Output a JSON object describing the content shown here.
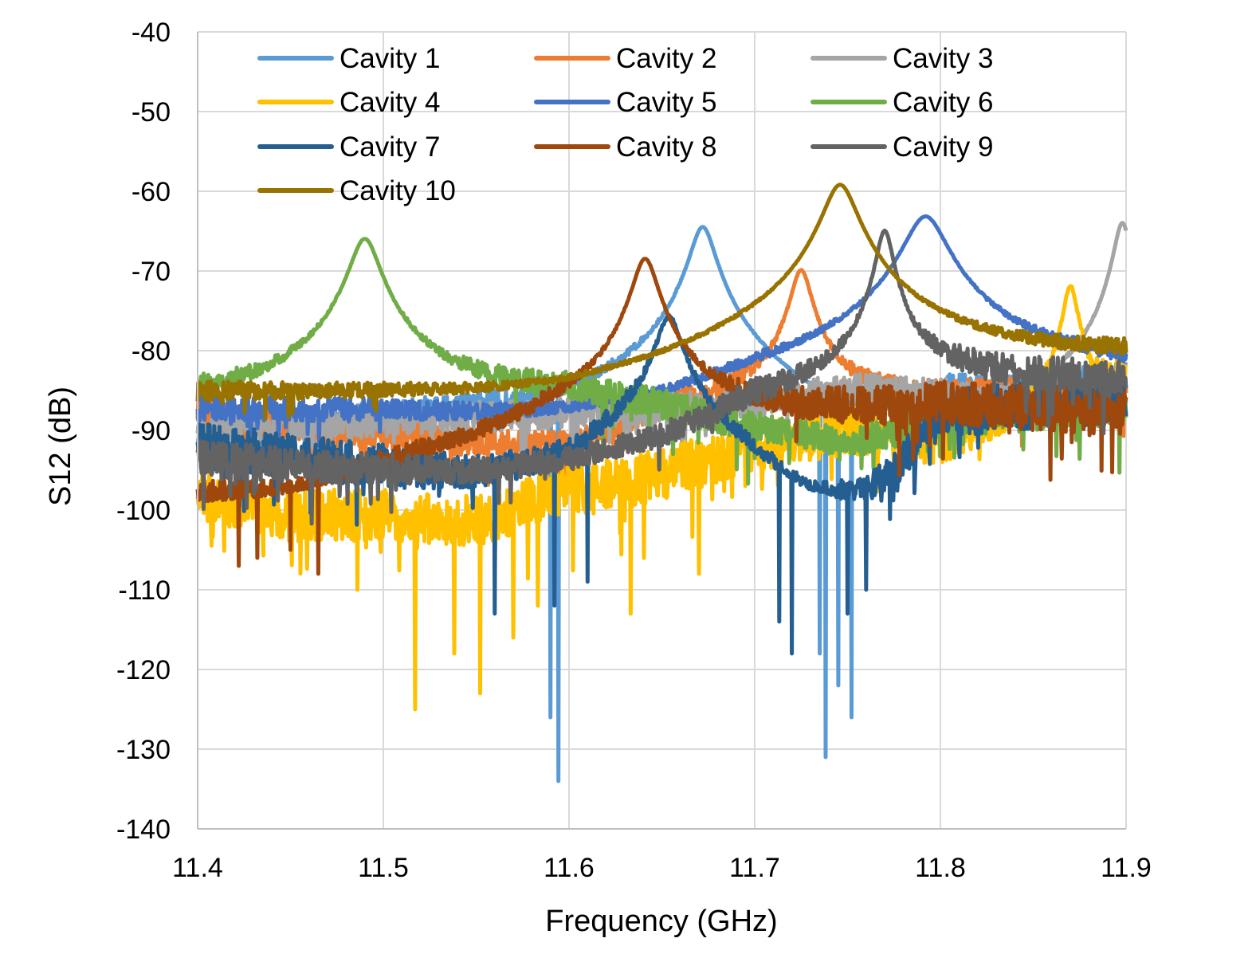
{
  "chart_data": {
    "type": "line",
    "title": "",
    "xlabel": "Frequency (GHz)",
    "ylabel": "S12 (dB)",
    "xlim": [
      11.4,
      11.9
    ],
    "ylim": [
      -140,
      -40
    ],
    "x_ticks": [
      "11.4",
      "11.5",
      "11.6",
      "11.7",
      "11.8",
      "11.9"
    ],
    "y_ticks": [
      "-40",
      "-50",
      "-60",
      "-70",
      "-80",
      "-90",
      "-100",
      "-110",
      "-120",
      "-130",
      "-140"
    ],
    "grid": true,
    "legend_position": "top",
    "series": [
      {
        "name": "Cavity 1",
        "color": "#5B9BD5",
        "resonance": {
          "freq": 11.672,
          "peak": -64.5,
          "width": 0.012,
          "rolloff": -2.2
        },
        "noise_floor": [
          [
            11.4,
            -91
          ],
          [
            11.55,
            -89
          ],
          [
            11.6,
            -90
          ],
          [
            11.63,
            -88
          ],
          [
            11.66,
            -86
          ],
          [
            11.7,
            -92
          ],
          [
            11.73,
            -100
          ],
          [
            11.76,
            -93
          ],
          [
            11.8,
            -86
          ],
          [
            11.9,
            -84
          ]
        ],
        "noise_amplitude": 2.5,
        "dips": [
          [
            11.59,
            -126
          ],
          [
            11.594,
            -134
          ],
          [
            11.738,
            -131
          ],
          [
            11.745,
            -122
          ],
          [
            11.752,
            -126
          ],
          [
            11.735,
            -118
          ]
        ]
      },
      {
        "name": "Cavity 2",
        "color": "#ED7D31",
        "resonance": {
          "freq": 11.725,
          "peak": -70,
          "width": 0.01,
          "rolloff": -2.5
        },
        "noise_floor": [
          [
            11.4,
            -88
          ],
          [
            11.55,
            -92
          ],
          [
            11.6,
            -93
          ],
          [
            11.65,
            -88
          ],
          [
            11.7,
            -86
          ],
          [
            11.8,
            -86
          ],
          [
            11.9,
            -85
          ]
        ],
        "noise_amplitude": 2,
        "dips": []
      },
      {
        "name": "Cavity 3",
        "color": "#A5A5A5",
        "resonance": {
          "freq": 11.898,
          "peak": -64,
          "width": 0.008,
          "rolloff": -2
        },
        "noise_floor": [
          [
            11.4,
            -90
          ],
          [
            11.5,
            -89
          ],
          [
            11.6,
            -88
          ],
          [
            11.7,
            -87
          ],
          [
            11.75,
            -85
          ],
          [
            11.8,
            -86
          ],
          [
            11.85,
            -90
          ],
          [
            11.9,
            -86
          ]
        ],
        "noise_amplitude": 2,
        "dips": []
      },
      {
        "name": "Cavity 4",
        "color": "#FFC000",
        "resonance": {
          "freq": 11.87,
          "peak": -72,
          "width": 0.007,
          "rolloff": -2.5
        },
        "noise_floor": [
          [
            11.4,
            -98
          ],
          [
            11.45,
            -101
          ],
          [
            11.5,
            -101
          ],
          [
            11.55,
            -102
          ],
          [
            11.6,
            -98
          ],
          [
            11.65,
            -96
          ],
          [
            11.7,
            -92
          ],
          [
            11.75,
            -90
          ],
          [
            11.8,
            -93
          ],
          [
            11.85,
            -90
          ],
          [
            11.9,
            -85
          ]
        ],
        "noise_amplitude": 3.5,
        "dips": [
          [
            11.517,
            -125
          ],
          [
            11.552,
            -123
          ],
          [
            11.538,
            -118
          ],
          [
            11.57,
            -116
          ],
          [
            11.633,
            -113
          ],
          [
            11.486,
            -110
          ],
          [
            11.583,
            -112
          ],
          [
            11.67,
            -108
          ]
        ]
      },
      {
        "name": "Cavity 5",
        "color": "#4472C4",
        "resonance": {
          "freq": 11.792,
          "peak": -63.2,
          "width": 0.02,
          "rolloff": -4.5
        },
        "noise_floor": [
          [
            11.4,
            -88
          ],
          [
            11.5,
            -89
          ],
          [
            11.6,
            -92
          ],
          [
            11.65,
            -91
          ],
          [
            11.7,
            -86
          ],
          [
            11.75,
            -84
          ],
          [
            11.9,
            -83
          ]
        ],
        "noise_amplitude": 2,
        "dips": []
      },
      {
        "name": "Cavity 6",
        "color": "#70AD47",
        "resonance": {
          "freq": 11.49,
          "peak": -66,
          "width": 0.014,
          "rolloff": -5
        },
        "noise_floor": [
          [
            11.4,
            -87
          ],
          [
            11.6,
            -86
          ],
          [
            11.65,
            -88
          ],
          [
            11.7,
            -91
          ],
          [
            11.75,
            -93
          ],
          [
            11.8,
            -89
          ],
          [
            11.9,
            -87
          ]
        ],
        "noise_amplitude": 2.5,
        "dips": []
      },
      {
        "name": "Cavity 7",
        "color": "#255E91",
        "resonance": {
          "freq": 11.654,
          "peak": -76,
          "width": 0.012,
          "rolloff": -1.5
        },
        "noise_floor": [
          [
            11.4,
            -92
          ],
          [
            11.5,
            -95
          ],
          [
            11.55,
            -97
          ],
          [
            11.6,
            -96
          ],
          [
            11.65,
            -88
          ],
          [
            11.7,
            -97
          ],
          [
            11.73,
            -104
          ],
          [
            11.76,
            -100
          ],
          [
            11.8,
            -88
          ],
          [
            11.9,
            -86
          ]
        ],
        "noise_amplitude": 3,
        "dips": [
          [
            11.72,
            -118
          ],
          [
            11.713,
            -114
          ],
          [
            11.75,
            -113
          ],
          [
            11.76,
            -110
          ],
          [
            11.56,
            -113
          ],
          [
            11.592,
            -112
          ],
          [
            11.61,
            -109
          ]
        ]
      },
      {
        "name": "Cavity 8",
        "color": "#9E480E",
        "resonance": {
          "freq": 11.641,
          "peak": -68.5,
          "width": 0.012,
          "rolloff": -2.5
        },
        "noise_floor": [
          [
            11.4,
            -101
          ],
          [
            11.45,
            -103
          ],
          [
            11.5,
            -98
          ],
          [
            11.55,
            -95
          ],
          [
            11.6,
            -90
          ],
          [
            11.7,
            -89
          ],
          [
            11.8,
            -87
          ],
          [
            11.9,
            -88
          ]
        ],
        "noise_amplitude": 3,
        "dips": [
          [
            11.422,
            -107
          ],
          [
            11.465,
            -108
          ],
          [
            11.432,
            -106
          ],
          [
            11.45,
            -105
          ]
        ]
      },
      {
        "name": "Cavity 9",
        "color": "#636363",
        "resonance": {
          "freq": 11.77,
          "peak": -65,
          "width": 0.008,
          "rolloff": -3
        },
        "noise_floor": [
          [
            11.4,
            -94
          ],
          [
            11.5,
            -96
          ],
          [
            11.55,
            -97
          ],
          [
            11.6,
            -96
          ],
          [
            11.65,
            -93
          ],
          [
            11.7,
            -87
          ],
          [
            11.8,
            -83
          ],
          [
            11.9,
            -84
          ]
        ],
        "noise_amplitude": 2.5,
        "dips": []
      },
      {
        "name": "Cavity 10",
        "color": "#997300",
        "resonance": {
          "freq": 11.746,
          "peak": -59.2,
          "width": 0.016,
          "rolloff": -10
        },
        "noise_floor": [
          [
            11.4,
            -86
          ],
          [
            11.5,
            -87
          ],
          [
            11.6,
            -90
          ],
          [
            11.65,
            -88
          ],
          [
            11.7,
            -84
          ],
          [
            11.8,
            -82
          ],
          [
            11.9,
            -81
          ]
        ],
        "noise_amplitude": 1.5,
        "dips": []
      }
    ]
  }
}
